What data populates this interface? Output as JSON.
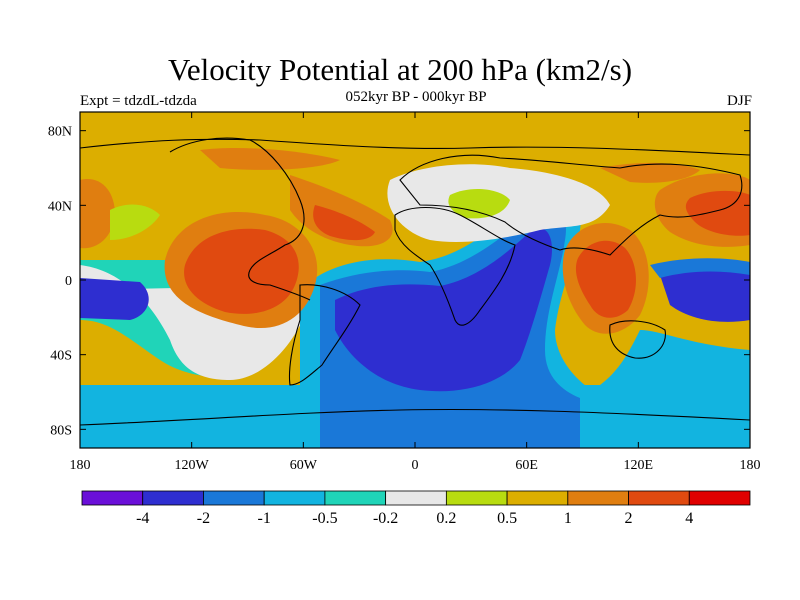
{
  "title": "Velocity Potential at 200 hPa (km2/s)",
  "subtitle": "052kyr BP - 000kyr BP",
  "experiment": "Expt = tdzdL-tdzda",
  "season": "DJF",
  "lat_ticks": [
    "80N",
    "40N",
    "0",
    "40S",
    "80S"
  ],
  "lon_ticks": [
    "180",
    "120W",
    "60W",
    "0",
    "60E",
    "120E",
    "180"
  ],
  "colorbar": {
    "labels": [
      "-4",
      "-2",
      "-1",
      "-0.5",
      "-0.2",
      "0.2",
      "0.5",
      "1",
      "2",
      "4"
    ],
    "colors": [
      "#6a0fd8",
      "#2e2ed0",
      "#1a78d8",
      "#12b4e0",
      "#20d4b8",
      "#e8e8e8",
      "#b8dc10",
      "#dcae00",
      "#e07e10",
      "#e04a10",
      "#e00000"
    ]
  }
}
